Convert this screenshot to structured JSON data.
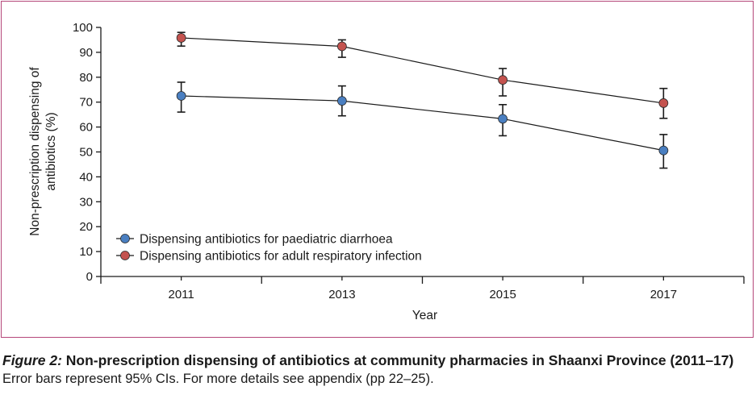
{
  "chart_data": {
    "type": "line",
    "categories": [
      "2011",
      "2013",
      "2015",
      "2017"
    ],
    "xlabel": "Year",
    "ylabel": "Non-prescription dispensing of antibiotics (%)",
    "ylabel_lines": [
      "Non-prescription dispensing of",
      "antibiotics (%)"
    ],
    "ylim": [
      0,
      100
    ],
    "yticks": [
      0,
      10,
      20,
      30,
      40,
      50,
      60,
      70,
      80,
      90,
      100
    ],
    "grid": false,
    "legend_position": "bottom-left",
    "series": [
      {
        "name": "Dispensing antibiotics for paediatric diarrhoea",
        "color": "#4a7fc1",
        "values": [
          72.5,
          70.5,
          63.3,
          50.6
        ],
        "ci_low": [
          66,
          64.5,
          56.5,
          43.5
        ],
        "ci_high": [
          78,
          76.5,
          69,
          57
        ]
      },
      {
        "name": "Dispensing antibiotics for adult respiratory infection",
        "color": "#c4534f",
        "values": [
          95.8,
          92.4,
          78.9,
          69.6
        ],
        "ci_low": [
          92.5,
          88,
          72.5,
          63.5
        ],
        "ci_high": [
          98,
          95,
          83.5,
          75.5
        ]
      }
    ]
  },
  "caption": {
    "figure_label": "Figure 2:",
    "title": " Non-prescription dispensing of antibiotics at community pharmacies in Shaanxi Province (2011–17)",
    "note": "Error bars represent 95% CIs. For more details see appendix (pp 22–25)."
  },
  "colors": {
    "frame": "#b5477a"
  }
}
